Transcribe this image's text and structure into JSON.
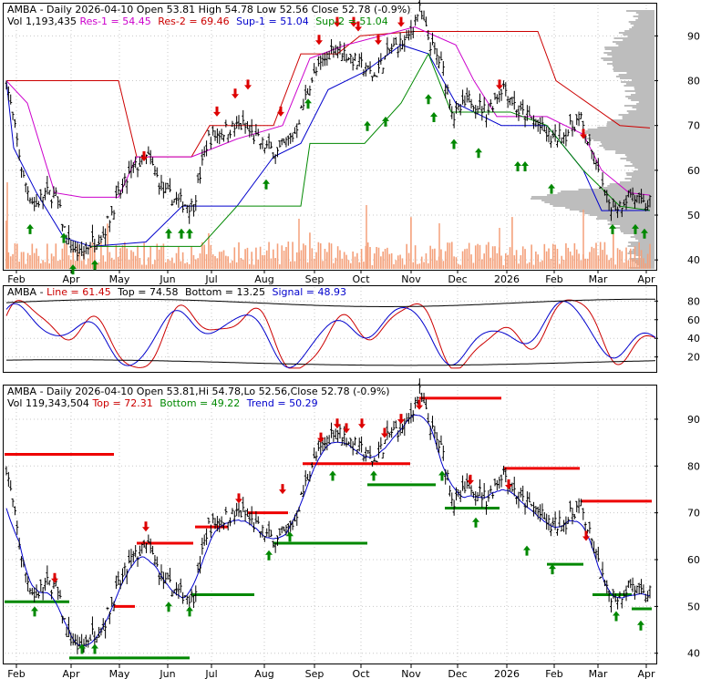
{
  "colors": {
    "black": "#000000",
    "red_arrow": "#dd0000",
    "green_arrow": "#008800",
    "res1": "#cc00cc",
    "res2": "#cc0000",
    "sup1": "#0000cc",
    "sup2": "#008800",
    "volume": "#f4a07a",
    "volume_profile": "#bdbdbd",
    "signal": "#0000cc",
    "line": "#cc0000",
    "red_level": "#ee0000",
    "green_level": "#008800"
  },
  "panels": {
    "top": {
      "header": {
        "line1": {
          "prefix": "AMBA - Daily 2026-04-10 Open 53.81  High 54.78  Low 52.56  Close 52.78 (-0.9%)"
        },
        "line2": {
          "vol": "Vol 1,193,435 ",
          "res1": "Res-1 = 54.45",
          "res2": "Res-2 = 69.46",
          "sup1": "Sup-1 = 51.04",
          "sup2": "Sup-2 = 51.04"
        }
      },
      "y_ticks": [
        "90",
        "80",
        "70",
        "60",
        "50",
        "40"
      ],
      "x_ticks": [
        "Feb",
        "Apr",
        "May",
        "Jun",
        "Jul",
        "Aug",
        "Sep",
        "Oct",
        "Nov",
        "Dec",
        "2026",
        "Feb",
        "Mar",
        "Apr"
      ]
    },
    "middle": {
      "header": {
        "prefix": "AMBA - ",
        "line": "Line = 61.45",
        "top": "Top = 74.58",
        "bottom": "Bottom = 13.25",
        "signal": "Signal = 48.93"
      },
      "y_ticks": [
        "80",
        "60",
        "40",
        "20"
      ]
    },
    "bottom": {
      "header": {
        "line1": {
          "prefix": "AMBA - Daily 2026-04-10 Open 53.81,Hi 54.78,Lo 52.56,Close 52.78 (-0.9%)"
        },
        "line2": {
          "vol": "Vol 119,343,504 ",
          "top": "Top = 72.31",
          "bottom": "Bottom = 49.22",
          "trend": "Trend = 50.29"
        }
      },
      "y_ticks": [
        "90",
        "80",
        "70",
        "60",
        "50",
        "40"
      ],
      "x_ticks": [
        "Feb",
        "Apr",
        "May",
        "Jun",
        "Jul",
        "Aug",
        "Sep",
        "Oct",
        "Nov",
        "Dec",
        "2026",
        "Feb",
        "Mar",
        "Apr"
      ]
    }
  },
  "chart_data": [
    {
      "type": "candlestick",
      "ticker": "AMBA",
      "x_axis": [
        "Feb",
        "Apr",
        "May",
        "Jun",
        "Jul",
        "Aug",
        "Sep",
        "Oct",
        "Nov",
        "Dec",
        "2026",
        "Feb",
        "Mar",
        "Apr"
      ],
      "ylim": [
        38,
        97
      ],
      "close_path": [
        [
          "Feb",
          80
        ],
        [
          "Feb",
          58
        ],
        [
          "Feb",
          52
        ],
        [
          "Feb",
          55
        ],
        [
          "Feb",
          54
        ],
        [
          "Apr",
          44
        ],
        [
          "Apr",
          41
        ],
        [
          "Apr",
          44
        ],
        [
          "Apr",
          46
        ],
        [
          "May",
          53
        ],
        [
          "May",
          60
        ],
        [
          "May",
          63
        ],
        [
          "Jun",
          55
        ],
        [
          "Jun",
          53
        ],
        [
          "Jun",
          52
        ],
        [
          "Jul",
          67
        ],
        [
          "Jul",
          69
        ],
        [
          "Jul",
          70
        ],
        [
          "Aug",
          66
        ],
        [
          "Aug",
          64
        ],
        [
          "Aug",
          68
        ],
        [
          "Sep",
          80
        ],
        [
          "Sep",
          84
        ],
        [
          "Sep",
          88
        ],
        [
          "Sep",
          86
        ],
        [
          "Oct",
          84
        ],
        [
          "Oct",
          81
        ],
        [
          "Oct",
          87
        ],
        [
          "Nov",
          89
        ],
        [
          "Nov",
          96
        ],
        [
          "Nov",
          88
        ],
        [
          "Nov",
          83
        ],
        [
          "Dec",
          72
        ],
        [
          "Dec",
          76
        ],
        [
          "Dec",
          73
        ],
        [
          "2026",
          79
        ],
        [
          "2026",
          73
        ],
        [
          "2026",
          71
        ],
        [
          "Feb",
          67
        ],
        [
          "Feb",
          68
        ],
        [
          "Feb",
          72
        ],
        [
          "Mar",
          62
        ],
        [
          "Mar",
          53
        ],
        [
          "Mar",
          52
        ],
        [
          "Mar",
          55
        ],
        [
          "Apr",
          52
        ],
        [
          "Apr",
          53
        ]
      ],
      "indicators": {
        "Res-1": 54.45,
        "Res-2": 69.46,
        "Sup-1": 51.04,
        "Sup-2": 51.04
      },
      "volume_last": 1193435,
      "last": {
        "date": "2026-04-10",
        "open": 53.81,
        "high": 54.78,
        "low": 52.56,
        "close": 52.78,
        "change_pct": -0.9
      }
    },
    {
      "type": "line",
      "ylim": [
        0,
        100
      ],
      "y_ticks": [
        80,
        60,
        40,
        20
      ],
      "values": {
        "Line": 61.45,
        "Top": 74.58,
        "Bottom": 13.25,
        "Signal": 48.93
      }
    },
    {
      "type": "candlestick",
      "ticker": "AMBA",
      "ylim": [
        38,
        97
      ],
      "values": {
        "Top": 72.31,
        "Bottom": 49.22,
        "Trend": 50.29
      },
      "volume": 119343504,
      "red_levels": [
        {
          "x_from": "Feb",
          "x_to": "Apr",
          "y": 82.5
        },
        {
          "x_from": "May",
          "x_to": "May",
          "y": 50
        },
        {
          "x_from": "May",
          "x_to": "Jun",
          "y": 63.5
        },
        {
          "x_from": "Jun",
          "x_to": "Jul",
          "y": 67
        },
        {
          "x_from": "Aug",
          "x_to": "Aug",
          "y": 70
        },
        {
          "x_from": "Sep",
          "x_to": "Nov",
          "y": 80.5
        },
        {
          "x_from": "Nov",
          "x_to": "2026",
          "y": 94.5
        },
        {
          "x_from": "2026",
          "x_to": "Feb",
          "y": 79.5
        },
        {
          "x_from": "Feb",
          "x_to": "Apr",
          "y": 72.5
        }
      ],
      "green_levels": [
        {
          "x_from": "Feb",
          "x_to": "Apr",
          "y": 51
        },
        {
          "x_from": "Apr",
          "x_to": "Jun",
          "y": 39
        },
        {
          "x_from": "Jun",
          "x_to": "Aug",
          "y": 52.5
        },
        {
          "x_from": "Aug",
          "x_to": "Oct",
          "y": 63.5
        },
        {
          "x_from": "Oct",
          "x_to": "Nov",
          "y": 76
        },
        {
          "x_from": "Dec",
          "x_to": "2026",
          "y": 71
        },
        {
          "x_from": "Feb",
          "x_to": "Feb",
          "y": 59
        },
        {
          "x_from": "Mar",
          "x_to": "Mar",
          "y": 52.5
        },
        {
          "x_from": "Mar",
          "x_to": "Apr",
          "y": 49.5
        }
      ]
    }
  ]
}
